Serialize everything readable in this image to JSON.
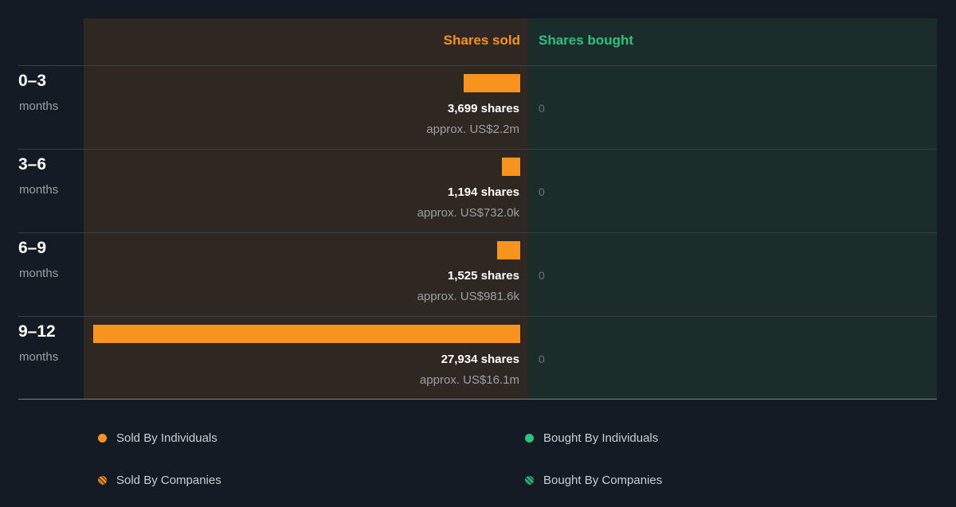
{
  "chart_data": {
    "type": "bar",
    "headers": {
      "sold": "Shares sold",
      "bought": "Shares bought"
    },
    "categories": [
      {
        "period": "0–3",
        "unit": "months"
      },
      {
        "period": "3–6",
        "unit": "months"
      },
      {
        "period": "6–9",
        "unit": "months"
      },
      {
        "period": "9–12",
        "unit": "months"
      }
    ],
    "series": [
      {
        "name": "Shares sold",
        "values": [
          3699,
          1194,
          1525,
          27934
        ],
        "labels": [
          "3,699 shares",
          "1,194 shares",
          "1,525 shares",
          "27,934 shares"
        ],
        "approx": [
          "approx. US$2.2m",
          "approx. US$732.0k",
          "approx. US$981.6k",
          "approx. US$16.1m"
        ]
      },
      {
        "name": "Shares bought",
        "values": [
          0,
          0,
          0,
          0
        ],
        "labels": [
          "0",
          "0",
          "0",
          "0"
        ]
      }
    ],
    "legend": [
      {
        "label": "Sold By Individuals",
        "color": "#f7941d"
      },
      {
        "label": "Bought By Individuals",
        "color": "#2ec27e"
      },
      {
        "label": "Sold By Companies",
        "color": "#f7941d"
      },
      {
        "label": "Bought By Companies",
        "color": "#2ec27e"
      }
    ],
    "colors": {
      "sold": "#f7941d",
      "bought": "#2ec27e"
    }
  }
}
